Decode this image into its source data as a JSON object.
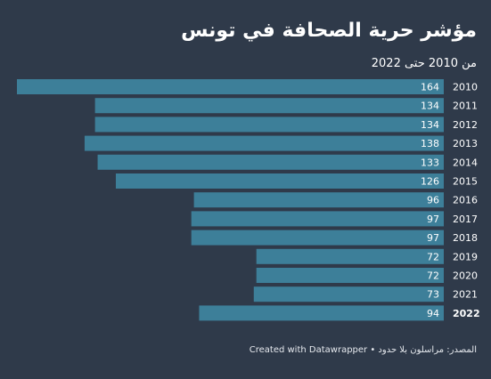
{
  "title": "مؤشر حرية الصحافة في تونس",
  "subtitle": "من 2010 حتى 2022",
  "footer": "المصدر: مراسلون بلا حدود • Created with Datawrapper",
  "colors": {
    "background": "#2f3a4a",
    "bar": "#3d7f99",
    "text": "#ffffff"
  },
  "chart_data": {
    "type": "bar",
    "orientation": "horizontal",
    "direction": "right-to-left",
    "categories": [
      "2010",
      "2011",
      "2012",
      "2013",
      "2014",
      "2015",
      "2016",
      "2017",
      "2018",
      "2019",
      "2020",
      "2021",
      "2022"
    ],
    "values": [
      164,
      134,
      134,
      138,
      133,
      126,
      96,
      97,
      97,
      72,
      72,
      73,
      94
    ],
    "highlight": "2022",
    "xlim": [
      0,
      164
    ]
  }
}
